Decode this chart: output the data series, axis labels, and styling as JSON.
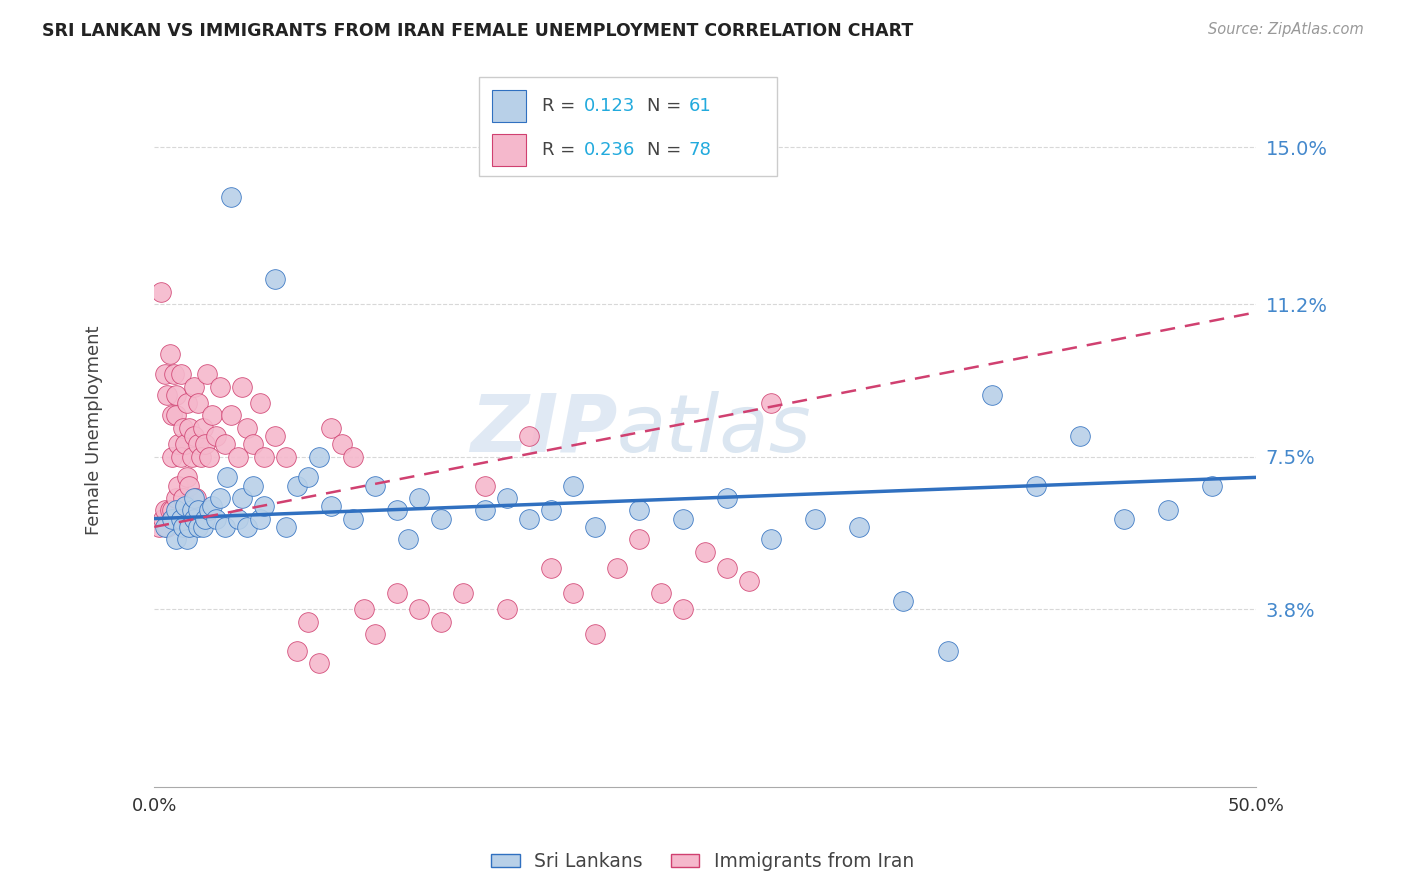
{
  "title": "SRI LANKAN VS IMMIGRANTS FROM IRAN FEMALE UNEMPLOYMENT CORRELATION CHART",
  "source": "Source: ZipAtlas.com",
  "ylabel": "Female Unemployment",
  "yticks": [
    0.038,
    0.075,
    0.112,
    0.15
  ],
  "ytick_labels": [
    "3.8%",
    "7.5%",
    "11.2%",
    "15.0%"
  ],
  "xmin": 0.0,
  "xmax": 0.5,
  "ymin": -0.005,
  "ymax": 0.168,
  "legend_r1": "0.123",
  "legend_n1": "61",
  "legend_r2": "0.236",
  "legend_n2": "78",
  "series1_name": "Sri Lankans",
  "series2_name": "Immigrants from Iran",
  "series1_color": "#b8d0e8",
  "series2_color": "#f5b8cc",
  "series1_line_color": "#3070c0",
  "series2_line_color": "#d04070",
  "watermark_zip": "ZIP",
  "watermark_atlas": "atlas",
  "background_color": "#ffffff",
  "grid_color": "#d8d8d8",
  "sri_x": [
    0.005,
    0.008,
    0.01,
    0.01,
    0.012,
    0.013,
    0.014,
    0.015,
    0.016,
    0.017,
    0.018,
    0.018,
    0.02,
    0.02,
    0.022,
    0.023,
    0.025,
    0.026,
    0.028,
    0.03,
    0.032,
    0.033,
    0.035,
    0.038,
    0.04,
    0.042,
    0.045,
    0.048,
    0.05,
    0.055,
    0.06,
    0.065,
    0.07,
    0.075,
    0.08,
    0.09,
    0.1,
    0.11,
    0.115,
    0.12,
    0.13,
    0.15,
    0.16,
    0.17,
    0.18,
    0.19,
    0.2,
    0.22,
    0.24,
    0.26,
    0.28,
    0.3,
    0.32,
    0.34,
    0.36,
    0.38,
    0.4,
    0.42,
    0.44,
    0.46,
    0.48
  ],
  "sri_y": [
    0.058,
    0.06,
    0.055,
    0.062,
    0.06,
    0.058,
    0.063,
    0.055,
    0.058,
    0.062,
    0.06,
    0.065,
    0.058,
    0.062,
    0.058,
    0.06,
    0.062,
    0.063,
    0.06,
    0.065,
    0.058,
    0.07,
    0.138,
    0.06,
    0.065,
    0.058,
    0.068,
    0.06,
    0.063,
    0.118,
    0.058,
    0.068,
    0.07,
    0.075,
    0.063,
    0.06,
    0.068,
    0.062,
    0.055,
    0.065,
    0.06,
    0.062,
    0.065,
    0.06,
    0.062,
    0.068,
    0.058,
    0.062,
    0.06,
    0.065,
    0.055,
    0.06,
    0.058,
    0.04,
    0.028,
    0.09,
    0.068,
    0.08,
    0.06,
    0.062,
    0.068
  ],
  "iran_x": [
    0.002,
    0.003,
    0.004,
    0.005,
    0.005,
    0.006,
    0.006,
    0.007,
    0.007,
    0.008,
    0.008,
    0.008,
    0.009,
    0.009,
    0.01,
    0.01,
    0.01,
    0.011,
    0.011,
    0.012,
    0.012,
    0.013,
    0.013,
    0.014,
    0.015,
    0.015,
    0.016,
    0.016,
    0.017,
    0.018,
    0.018,
    0.019,
    0.02,
    0.02,
    0.021,
    0.022,
    0.023,
    0.024,
    0.025,
    0.026,
    0.028,
    0.03,
    0.032,
    0.035,
    0.038,
    0.04,
    0.042,
    0.045,
    0.048,
    0.05,
    0.055,
    0.06,
    0.065,
    0.07,
    0.075,
    0.08,
    0.085,
    0.09,
    0.095,
    0.1,
    0.11,
    0.12,
    0.13,
    0.14,
    0.15,
    0.16,
    0.17,
    0.18,
    0.19,
    0.2,
    0.21,
    0.22,
    0.23,
    0.24,
    0.25,
    0.26,
    0.27,
    0.28
  ],
  "iran_y": [
    0.058,
    0.115,
    0.06,
    0.095,
    0.062,
    0.058,
    0.09,
    0.062,
    0.1,
    0.085,
    0.062,
    0.075,
    0.095,
    0.06,
    0.085,
    0.09,
    0.065,
    0.078,
    0.068,
    0.075,
    0.095,
    0.082,
    0.065,
    0.078,
    0.07,
    0.088,
    0.082,
    0.068,
    0.075,
    0.08,
    0.092,
    0.065,
    0.078,
    0.088,
    0.075,
    0.082,
    0.078,
    0.095,
    0.075,
    0.085,
    0.08,
    0.092,
    0.078,
    0.085,
    0.075,
    0.092,
    0.082,
    0.078,
    0.088,
    0.075,
    0.08,
    0.075,
    0.028,
    0.035,
    0.025,
    0.082,
    0.078,
    0.075,
    0.038,
    0.032,
    0.042,
    0.038,
    0.035,
    0.042,
    0.068,
    0.038,
    0.08,
    0.048,
    0.042,
    0.032,
    0.048,
    0.055,
    0.042,
    0.038,
    0.052,
    0.048,
    0.045,
    0.088
  ]
}
